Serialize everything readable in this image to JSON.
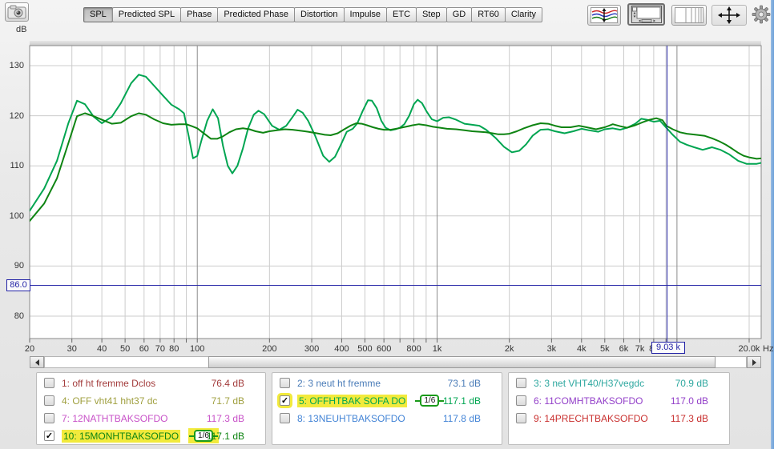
{
  "toolbar": {
    "camera_icon": "capture-measurement-icon",
    "tabs": [
      {
        "label": "SPL",
        "active": true
      },
      {
        "label": "Predicted SPL",
        "active": false
      },
      {
        "label": "Phase",
        "active": false
      },
      {
        "label": "Predicted Phase",
        "active": false
      },
      {
        "label": "Distortion",
        "active": false
      },
      {
        "label": "Impulse",
        "active": false
      },
      {
        "label": "ETC",
        "active": false
      },
      {
        "label": "Step",
        "active": false
      },
      {
        "label": "GD",
        "active": false
      },
      {
        "label": "RT60",
        "active": false
      },
      {
        "label": "Clarity",
        "active": false
      }
    ],
    "icon_buttons": [
      {
        "name": "overlays-traces-icon",
        "pressed": false
      },
      {
        "name": "scroll-view-icon",
        "pressed": true
      },
      {
        "name": "frequency-bands-icon",
        "pressed": false
      },
      {
        "name": "pan-move-icon",
        "pressed": false
      },
      {
        "name": "settings-gear-icon",
        "pressed": false
      }
    ]
  },
  "chart": {
    "y_unit": "dB",
    "x_unit": "Hz",
    "y_ticks": [
      130,
      120,
      110,
      100,
      90,
      80
    ],
    "x_tick_labels": [
      {
        "f": 20,
        "label": "20"
      },
      {
        "f": 30,
        "label": "30"
      },
      {
        "f": 40,
        "label": "40"
      },
      {
        "f": 50,
        "label": "50"
      },
      {
        "f": 60,
        "label": "60"
      },
      {
        "f": 70,
        "label": "70"
      },
      {
        "f": 80,
        "label": "80"
      },
      {
        "f": 100,
        "label": "100"
      },
      {
        "f": 200,
        "label": "200"
      },
      {
        "f": 300,
        "label": "300"
      },
      {
        "f": 400,
        "label": "400"
      },
      {
        "f": 500,
        "label": "500"
      },
      {
        "f": 600,
        "label": "600"
      },
      {
        "f": 800,
        "label": "800"
      },
      {
        "f": 1000,
        "label": "1k"
      },
      {
        "f": 2000,
        "label": "2k"
      },
      {
        "f": 3000,
        "label": "3k"
      },
      {
        "f": 4000,
        "label": "4k"
      },
      {
        "f": 5000,
        "label": "5k"
      },
      {
        "f": 6000,
        "label": "6k"
      },
      {
        "f": 7000,
        "label": "7k"
      },
      {
        "f": 8000,
        "label": "8k"
      },
      {
        "f": 10000,
        "label": "10k"
      },
      {
        "f": 20000,
        "label": "20.0k"
      }
    ],
    "minor_gridlines": [
      30,
      40,
      50,
      60,
      70,
      80,
      90,
      200,
      300,
      400,
      500,
      600,
      700,
      800,
      900,
      2000,
      3000,
      4000,
      5000,
      6000,
      7000,
      8000,
      9000,
      20000
    ],
    "major_gridlines": [
      100,
      1000,
      10000
    ],
    "cursor": {
      "freq_label": "9.03 k",
      "freq_hz": 9030,
      "level_label": "86.0",
      "level_db": 86.0
    }
  },
  "chart_data": {
    "type": "line",
    "title": "SPL",
    "xlabel": "Hz",
    "ylabel": "dB",
    "x_scale": "log",
    "xlim": [
      20,
      22500
    ],
    "ylim": [
      76,
      134
    ],
    "grid": true,
    "series": [
      {
        "name": "5: OFFHTBAK SOFA DO",
        "color": "#00a551",
        "points": [
          [
            20,
            101
          ],
          [
            23,
            105.5
          ],
          [
            26,
            111
          ],
          [
            29,
            118.5
          ],
          [
            31.5,
            123
          ],
          [
            34,
            122.3
          ],
          [
            37,
            119.8
          ],
          [
            40,
            118.5
          ],
          [
            44,
            119.8
          ],
          [
            48,
            122.5
          ],
          [
            53,
            126.5
          ],
          [
            57,
            128.2
          ],
          [
            61,
            127.8
          ],
          [
            66,
            126
          ],
          [
            72,
            124
          ],
          [
            78,
            122.2
          ],
          [
            84,
            121.3
          ],
          [
            88,
            120.5
          ],
          [
            92,
            116
          ],
          [
            96,
            111.5
          ],
          [
            100,
            112
          ],
          [
            104,
            115
          ],
          [
            110,
            119
          ],
          [
            116,
            121.3
          ],
          [
            122,
            119.5
          ],
          [
            128,
            114
          ],
          [
            134,
            110
          ],
          [
            140,
            108.5
          ],
          [
            147,
            110
          ],
          [
            155,
            113.5
          ],
          [
            163,
            117.5
          ],
          [
            172,
            120.2
          ],
          [
            180,
            121
          ],
          [
            190,
            120.3
          ],
          [
            205,
            118
          ],
          [
            220,
            117.2
          ],
          [
            235,
            118
          ],
          [
            250,
            119.8
          ],
          [
            262,
            121.2
          ],
          [
            275,
            120.6
          ],
          [
            290,
            119
          ],
          [
            310,
            116
          ],
          [
            335,
            112
          ],
          [
            355,
            110.8
          ],
          [
            375,
            111.8
          ],
          [
            395,
            114
          ],
          [
            420,
            116.8
          ],
          [
            445,
            117.4
          ],
          [
            465,
            118.5
          ],
          [
            490,
            121
          ],
          [
            515,
            123.1
          ],
          [
            535,
            123
          ],
          [
            560,
            121.5
          ],
          [
            585,
            119
          ],
          [
            610,
            117.6
          ],
          [
            640,
            117.1
          ],
          [
            670,
            117.3
          ],
          [
            700,
            117.6
          ],
          [
            730,
            118.3
          ],
          [
            765,
            120
          ],
          [
            800,
            122.3
          ],
          [
            830,
            123.2
          ],
          [
            865,
            122.5
          ],
          [
            905,
            120.8
          ],
          [
            950,
            119.3
          ],
          [
            1000,
            118.9
          ],
          [
            1060,
            119.6
          ],
          [
            1120,
            119.7
          ],
          [
            1200,
            119.2
          ],
          [
            1300,
            118.4
          ],
          [
            1400,
            118.2
          ],
          [
            1500,
            118
          ],
          [
            1600,
            117.2
          ],
          [
            1750,
            115.6
          ],
          [
            1900,
            113.8
          ],
          [
            2050,
            112.7
          ],
          [
            2200,
            113
          ],
          [
            2350,
            114.3
          ],
          [
            2500,
            116
          ],
          [
            2700,
            117.2
          ],
          [
            2900,
            117.3
          ],
          [
            3100,
            116.9
          ],
          [
            3400,
            116.5
          ],
          [
            3700,
            116.9
          ],
          [
            4000,
            117.4
          ],
          [
            4300,
            117.1
          ],
          [
            4700,
            116.8
          ],
          [
            5000,
            117.3
          ],
          [
            5400,
            117.5
          ],
          [
            5800,
            117.2
          ],
          [
            6200,
            117.6
          ],
          [
            6700,
            118.4
          ],
          [
            7100,
            119.4
          ],
          [
            7500,
            119.2
          ],
          [
            8000,
            118.8
          ],
          [
            8500,
            119
          ],
          [
            9030,
            117.6
          ],
          [
            9600,
            116.2
          ],
          [
            10300,
            114.8
          ],
          [
            11000,
            114.2
          ],
          [
            11800,
            113.7
          ],
          [
            12800,
            113.2
          ],
          [
            14000,
            113.7
          ],
          [
            15200,
            113.2
          ],
          [
            16500,
            112.3
          ],
          [
            18000,
            111
          ],
          [
            19500,
            110.4
          ],
          [
            21500,
            110.4
          ],
          [
            22500,
            110.6
          ]
        ]
      },
      {
        "name": "10: 15MONHTBAKSOFDO",
        "color": "#0e8412",
        "points": [
          [
            20,
            99
          ],
          [
            23,
            102.5
          ],
          [
            26,
            107.5
          ],
          [
            29,
            114.5
          ],
          [
            31.5,
            119.9
          ],
          [
            34,
            120.5
          ],
          [
            37,
            119.9
          ],
          [
            40,
            119.2
          ],
          [
            44,
            118.4
          ],
          [
            48,
            118.6
          ],
          [
            53,
            119.9
          ],
          [
            57,
            120.5
          ],
          [
            61,
            120.2
          ],
          [
            66,
            119.3
          ],
          [
            72,
            118.5
          ],
          [
            78,
            118.2
          ],
          [
            84,
            118.3
          ],
          [
            90,
            118.3
          ],
          [
            95,
            117.9
          ],
          [
            100,
            117.5
          ],
          [
            107,
            116.4
          ],
          [
            114,
            115.4
          ],
          [
            121,
            115.4
          ],
          [
            128,
            115.9
          ],
          [
            136,
            116.7
          ],
          [
            145,
            117.3
          ],
          [
            155,
            117.5
          ],
          [
            165,
            117.3
          ],
          [
            175,
            116.9
          ],
          [
            188,
            116.6
          ],
          [
            200,
            116.9
          ],
          [
            215,
            117.1
          ],
          [
            232,
            117.3
          ],
          [
            250,
            117.2
          ],
          [
            270,
            117
          ],
          [
            290,
            116.8
          ],
          [
            315,
            116.5
          ],
          [
            340,
            116.2
          ],
          [
            360,
            116.1
          ],
          [
            385,
            116.5
          ],
          [
            410,
            117.3
          ],
          [
            435,
            118
          ],
          [
            460,
            118.5
          ],
          [
            485,
            118.4
          ],
          [
            510,
            118.1
          ],
          [
            540,
            117.7
          ],
          [
            570,
            117.4
          ],
          [
            600,
            117.2
          ],
          [
            640,
            117.2
          ],
          [
            690,
            117.5
          ],
          [
            740,
            117.8
          ],
          [
            790,
            118.1
          ],
          [
            840,
            118.3
          ],
          [
            900,
            118.1
          ],
          [
            960,
            117.8
          ],
          [
            1030,
            117.6
          ],
          [
            1100,
            117.4
          ],
          [
            1200,
            117.3
          ],
          [
            1300,
            117.1
          ],
          [
            1400,
            116.9
          ],
          [
            1500,
            116.8
          ],
          [
            1600,
            116.7
          ],
          [
            1700,
            116.5
          ],
          [
            1800,
            116.3
          ],
          [
            1900,
            116.3
          ],
          [
            2000,
            116.4
          ],
          [
            2150,
            116.9
          ],
          [
            2300,
            117.5
          ],
          [
            2500,
            118.1
          ],
          [
            2700,
            118.5
          ],
          [
            2900,
            118.4
          ],
          [
            3100,
            118
          ],
          [
            3300,
            117.7
          ],
          [
            3600,
            117.7
          ],
          [
            3900,
            118
          ],
          [
            4200,
            117.7
          ],
          [
            4600,
            117.3
          ],
          [
            5000,
            117.7
          ],
          [
            5400,
            118.3
          ],
          [
            5800,
            117.9
          ],
          [
            6200,
            117.6
          ],
          [
            6700,
            118.1
          ],
          [
            7200,
            118.7
          ],
          [
            7700,
            119.2
          ],
          [
            8200,
            119.5
          ],
          [
            8700,
            119.1
          ],
          [
            9030,
            118
          ],
          [
            9600,
            117.3
          ],
          [
            10300,
            116.7
          ],
          [
            11000,
            116.4
          ],
          [
            12000,
            116.2
          ],
          [
            13000,
            116
          ],
          [
            14000,
            115.5
          ],
          [
            15000,
            114.9
          ],
          [
            16000,
            114.2
          ],
          [
            17000,
            113.4
          ],
          [
            18000,
            112.6
          ],
          [
            19000,
            112
          ],
          [
            20000,
            111.7
          ],
          [
            21500,
            111.4
          ],
          [
            22500,
            111.5
          ]
        ]
      }
    ]
  },
  "legend": {
    "columns": [
      {
        "rows": [
          {
            "num": "1:",
            "label": "off ht fremme Dclos",
            "value": "76.4 dB",
            "color": "#a33c3c",
            "checked": false,
            "badge": null,
            "hl_label": false,
            "hl_checkbox": false,
            "hl_badge": false
          },
          {
            "num": "4:",
            "label": "OFF vht41 hht37 dc",
            "value": "71.7 dB",
            "color": "#a0a040",
            "checked": false,
            "badge": null,
            "hl_label": false,
            "hl_checkbox": false,
            "hl_badge": false
          },
          {
            "num": "7:",
            "label": "12NATHTBAKSOFDO",
            "value": "117.3 dB",
            "color": "#c852c8",
            "checked": false,
            "badge": null,
            "hl_label": false,
            "hl_checkbox": false,
            "hl_badge": false
          },
          {
            "num": "10:",
            "label": "15MONHTBAKSOFDO",
            "value": "117.1 dB",
            "color": "#0e8412",
            "checked": true,
            "badge": "1/6",
            "hl_label": true,
            "hl_checkbox": false,
            "hl_badge": true
          }
        ]
      },
      {
        "rows": [
          {
            "num": "2:",
            "label": "3 neut ht fremme",
            "value": "73.1 dB",
            "color": "#4a7cb8",
            "checked": false,
            "badge": null,
            "hl_label": false,
            "hl_checkbox": false,
            "hl_badge": false
          },
          {
            "num": "5:",
            "label": "OFFHTBAK SOFA DO",
            "value": "117.1 dB",
            "color": "#00a551",
            "checked": true,
            "badge": "1/6",
            "hl_label": true,
            "hl_checkbox": true,
            "hl_badge": false
          },
          {
            "num": "8:",
            "label": "13NEUHTBAKSOFDO",
            "value": "117.8 dB",
            "color": "#4384d6",
            "checked": false,
            "badge": null,
            "hl_label": false,
            "hl_checkbox": false,
            "hl_badge": false
          }
        ]
      },
      {
        "rows": [
          {
            "num": "3:",
            "label": "3 net VHT40/H37vegdc",
            "value": "70.9 dB",
            "color": "#2fa8a0",
            "checked": false,
            "badge": null,
            "hl_label": false,
            "hl_checkbox": false,
            "hl_badge": false
          },
          {
            "num": "6:",
            "label": "11COMHTBAKSOFDO",
            "value": "117.0 dB",
            "color": "#9340c9",
            "checked": false,
            "badge": null,
            "hl_label": false,
            "hl_checkbox": false,
            "hl_badge": false
          },
          {
            "num": "9:",
            "label": "14PRECHTBAKSOFDO",
            "value": "117.3 dB",
            "color": "#c9302f",
            "checked": false,
            "badge": null,
            "hl_label": false,
            "hl_checkbox": false,
            "hl_badge": false
          }
        ]
      }
    ]
  }
}
